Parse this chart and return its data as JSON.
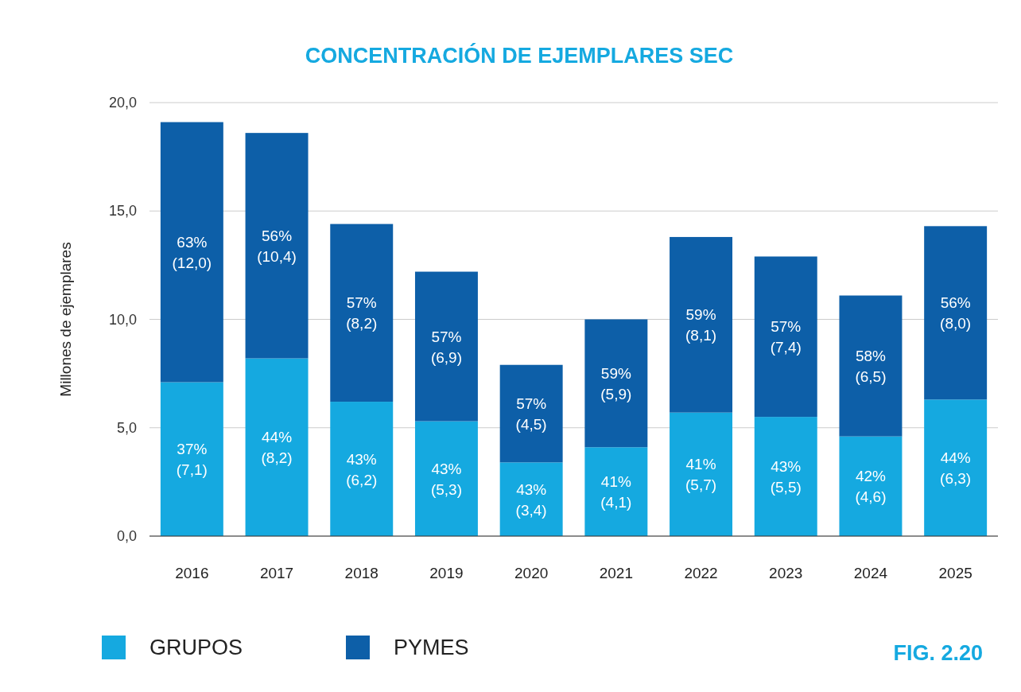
{
  "chart_data": {
    "type": "bar",
    "title": "CONCENTRACIÓN DE EJEMPLARES SEC",
    "ylabel": "Millones de ejemplares",
    "categories": [
      "2016",
      "2017",
      "2018",
      "2019",
      "2020",
      "2021",
      "2022",
      "2023",
      "2024",
      "2025"
    ],
    "stacked": true,
    "series": [
      {
        "name": "GRUPOS",
        "color": "#15a9e0",
        "values": [
          7.1,
          8.2,
          6.2,
          5.3,
          3.4,
          4.1,
          5.7,
          5.5,
          4.6,
          6.3
        ],
        "value_labels": [
          "37%\n(7,1)",
          "44%\n(8,2)",
          "43%\n(6,2)",
          "43%\n(5,3)",
          "43%\n(3,4)",
          "41%\n(4,1)",
          "41%\n(5,7)",
          "43%\n(5,5)",
          "42%\n(4,6)",
          "44%\n(6,3)"
        ]
      },
      {
        "name": "PYMES",
        "color": "#0d5fa8",
        "values": [
          12.0,
          10.4,
          8.2,
          6.9,
          4.5,
          5.9,
          8.1,
          7.4,
          6.5,
          8.0
        ],
        "value_labels": [
          "63%\n(12,0)",
          "56%\n(10,4)",
          "57%\n(8,2)",
          "57%\n(6,9)",
          "57%\n(4,5)",
          "59%\n(5,9)",
          "59%\n(8,1)",
          "57%\n(7,4)",
          "58%\n(6,5)",
          "56%\n(8,0)"
        ]
      }
    ],
    "ylim": [
      0,
      20
    ],
    "yticks": [
      {
        "value": 0,
        "label": "0,0"
      },
      {
        "value": 5,
        "label": "5,0"
      },
      {
        "value": 10,
        "label": "10,0"
      },
      {
        "value": 15,
        "label": "15,0"
      },
      {
        "value": 20,
        "label": "20,0"
      }
    ],
    "grid": "y",
    "legend": "bottom left",
    "annotations": [
      "FIG. 2.20"
    ]
  }
}
